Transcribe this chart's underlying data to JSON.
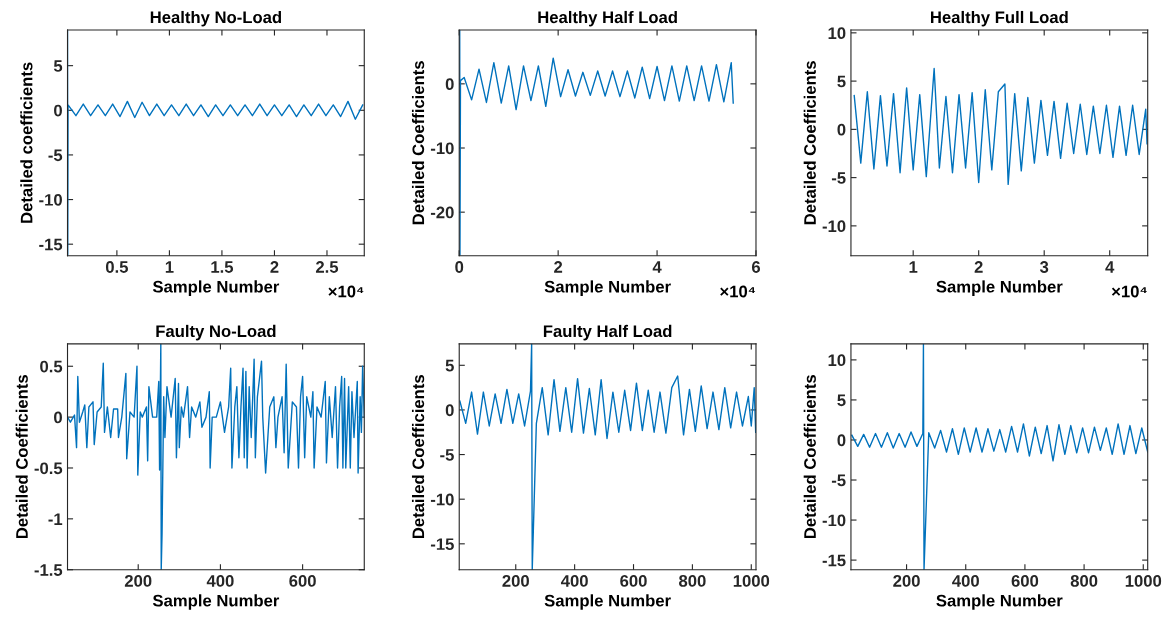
{
  "chart_data": [
    {
      "type": "line",
      "title": "Healthy No-Load",
      "xlabel": "Sample Number",
      "ylabel": "Detailed coefficients",
      "annotations": [
        "×10⁴"
      ],
      "xlim": [
        0.03,
        2.855
      ],
      "ylim": [
        -16.3,
        9
      ],
      "xticks": [
        0.5,
        1,
        1.5,
        2,
        2.5
      ],
      "yticks": [
        -15,
        -10,
        -5,
        0,
        5
      ],
      "series": [
        {
          "color": "#0072bd",
          "x": [
            0.03,
            0.032,
            0.035,
            0.11,
            0.18,
            0.25,
            0.32,
            0.39,
            0.46,
            0.53,
            0.6,
            0.67,
            0.74,
            0.81,
            0.88,
            0.95,
            1.02,
            1.09,
            1.16,
            1.23,
            1.3,
            1.37,
            1.44,
            1.51,
            1.58,
            1.65,
            1.72,
            1.79,
            1.86,
            1.93,
            2.0,
            2.07,
            2.14,
            2.21,
            2.28,
            2.35,
            2.42,
            2.49,
            2.56,
            2.63,
            2.7,
            2.77,
            2.84
          ],
          "values": [
            8.9,
            -16.2,
            0.6,
            -0.6,
            0.7,
            -0.6,
            0.6,
            -0.6,
            0.7,
            -0.7,
            1.0,
            -0.8,
            0.9,
            -0.6,
            0.7,
            -0.6,
            0.6,
            -0.6,
            0.7,
            -0.6,
            0.6,
            -0.7,
            0.6,
            -0.6,
            0.6,
            -0.6,
            0.6,
            -0.6,
            0.7,
            -0.6,
            0.6,
            -0.6,
            0.6,
            -0.7,
            0.6,
            -0.6,
            0.7,
            -0.6,
            0.6,
            -0.7,
            1.0,
            -1.0,
            0.6
          ]
        }
      ]
    },
    {
      "type": "line",
      "title": "Healthy Half Load",
      "xlabel": "Sample Number",
      "ylabel": "Detailed Coefficients",
      "annotations": [
        "×10⁴"
      ],
      "xlim": [
        0,
        6
      ],
      "ylim": [
        -26.8,
        8.4
      ],
      "xticks": [
        0,
        2,
        4,
        6
      ],
      "yticks": [
        -20,
        -10,
        0
      ],
      "series": [
        {
          "color": "#0072bd",
          "x": [
            0.01,
            0.015,
            0.025,
            0.1,
            0.25,
            0.4,
            0.55,
            0.7,
            0.85,
            1.0,
            1.15,
            1.3,
            1.45,
            1.6,
            1.75,
            1.9,
            2.05,
            2.2,
            2.35,
            2.5,
            2.65,
            2.8,
            2.95,
            3.1,
            3.25,
            3.4,
            3.55,
            3.7,
            3.85,
            4.0,
            4.15,
            4.3,
            4.45,
            4.6,
            4.75,
            4.9,
            5.05,
            5.2,
            5.35,
            5.5,
            5.54
          ],
          "values": [
            8.3,
            -26.7,
            0.5,
            1.0,
            -2.5,
            2.3,
            -2.9,
            3.3,
            -3.0,
            2.8,
            -4.0,
            2.8,
            -2.6,
            2.8,
            -3.5,
            4.0,
            -2.0,
            2.2,
            -1.9,
            1.8,
            -1.8,
            2.0,
            -1.9,
            2.0,
            -2.0,
            2.0,
            -2.2,
            2.6,
            -2.3,
            2.7,
            -2.6,
            2.8,
            -2.7,
            2.8,
            -2.6,
            2.8,
            -2.7,
            3.0,
            -2.8,
            3.3,
            -3.0
          ]
        }
      ]
    },
    {
      "type": "line",
      "title": "Healthy Full Load",
      "xlabel": "Sample Number",
      "ylabel": "Detailed Coefficients",
      "annotations": [
        "×10⁴"
      ],
      "xlim": [
        0.05,
        4.58
      ],
      "ylim": [
        -13.1,
        10.3
      ],
      "xticks": [
        1,
        2,
        3,
        4
      ],
      "yticks": [
        -10,
        -5,
        0,
        5,
        10
      ],
      "series": [
        {
          "color": "#0072bd",
          "x": [
            0.1,
            0.2,
            0.3,
            0.4,
            0.5,
            0.6,
            0.7,
            0.8,
            0.9,
            1.0,
            1.1,
            1.2,
            1.32,
            1.4,
            1.5,
            1.6,
            1.7,
            1.8,
            1.9,
            2.0,
            2.1,
            2.2,
            2.3,
            2.4,
            2.45,
            2.55,
            2.65,
            2.75,
            2.85,
            2.95,
            3.05,
            3.15,
            3.25,
            3.35,
            3.45,
            3.55,
            3.65,
            3.75,
            3.85,
            3.95,
            4.05,
            4.15,
            4.25,
            4.35,
            4.45,
            4.55,
            4.57
          ],
          "values": [
            3.5,
            -3.5,
            3.9,
            -4.1,
            3.5,
            -3.8,
            3.7,
            -4.5,
            4.3,
            -4.2,
            3.6,
            -4.9,
            6.3,
            -4.0,
            3.4,
            -4.5,
            3.6,
            -4.0,
            3.8,
            -5.5,
            4.1,
            -4.2,
            3.9,
            4.7,
            -5.7,
            3.7,
            -4.3,
            3.3,
            -3.5,
            3.0,
            -2.7,
            2.9,
            -3.0,
            2.7,
            -2.5,
            2.6,
            -2.6,
            2.4,
            -2.5,
            2.5,
            -2.9,
            2.4,
            -2.7,
            2.5,
            -2.6,
            2.1,
            -1.5
          ]
        }
      ]
    },
    {
      "type": "line",
      "title": "Faulty No-Load",
      "xlabel": "Sample Number",
      "ylabel": "Detailed Coefficients",
      "xlim": [
        28,
        750
      ],
      "ylim": [
        -1.5,
        0.72
      ],
      "xticks": [
        200,
        400,
        600
      ],
      "yticks": [
        -1.5,
        -1,
        -0.5,
        0,
        0.5
      ],
      "series": [
        {
          "color": "#0072bd",
          "x": [
            28,
            35,
            45,
            50,
            53,
            57,
            65,
            70,
            75,
            80,
            90,
            93,
            100,
            110,
            115,
            118,
            125,
            133,
            140,
            150,
            152,
            160,
            170,
            172,
            180,
            190,
            197,
            199,
            205,
            210,
            220,
            223,
            226,
            235,
            245,
            250,
            252,
            255,
            256,
            258,
            262,
            265,
            270,
            280,
            290,
            293,
            298,
            300,
            305,
            310,
            320,
            325,
            330,
            340,
            350,
            355,
            365,
            373,
            375,
            380,
            390,
            400,
            410,
            420,
            425,
            428,
            435,
            440,
            445,
            450,
            455,
            458,
            462,
            465,
            470,
            475,
            482,
            485,
            490,
            500,
            503,
            510,
            520,
            530,
            535,
            540,
            550,
            555,
            560,
            565,
            575,
            585,
            590,
            595,
            600,
            605,
            610,
            620,
            625,
            628,
            635,
            645,
            655,
            658,
            665,
            672,
            680,
            685,
            690,
            695,
            698,
            702,
            705,
            712,
            716,
            720,
            725,
            733,
            735,
            740,
            743,
            746,
            750
          ],
          "values": [
            0.0,
            -0.05,
            0.02,
            -0.3,
            0.4,
            -0.05,
            0.05,
            0.12,
            -0.3,
            0.1,
            0.15,
            -0.27,
            0.05,
            0.1,
            0.53,
            -0.15,
            0.1,
            -0.2,
            0.08,
            0.08,
            -0.2,
            0.0,
            0.43,
            -0.41,
            0.05,
            0.0,
            0.5,
            -0.57,
            0.05,
            0.0,
            0.1,
            -0.43,
            0.3,
            0.0,
            0.0,
            0.35,
            -0.52,
            0.72,
            -1.5,
            -1.15,
            0.2,
            -0.2,
            0.3,
            0.0,
            0.38,
            -0.4,
            0.33,
            -0.3,
            0.1,
            0.0,
            0.3,
            -0.2,
            0.1,
            0.0,
            0.15,
            -0.1,
            0.0,
            0.25,
            -0.5,
            0.0,
            0.0,
            0.15,
            -0.15,
            0.1,
            0.48,
            -0.5,
            0.1,
            0.3,
            -0.4,
            0.1,
            0.48,
            -0.4,
            0.45,
            -0.5,
            0.3,
            -0.2,
            0.57,
            -0.4,
            0.2,
            0.55,
            0.0,
            -0.55,
            0.1,
            0.2,
            -0.3,
            0.0,
            0.2,
            -0.35,
            0.52,
            -0.5,
            0.15,
            0.1,
            -0.5,
            0.2,
            0.4,
            -0.4,
            0.2,
            0.0,
            0.25,
            -0.5,
            0.1,
            0.0,
            0.35,
            -0.45,
            0.2,
            -0.2,
            0.3,
            -0.5,
            0.1,
            0.4,
            -0.5,
            0.38,
            -0.5,
            0.3,
            -0.5,
            0.25,
            -0.2,
            0.35,
            -0.55,
            0.2,
            -0.15,
            0.5,
            0.0
          ]
        }
      ]
    },
    {
      "type": "line",
      "title": "Faulty Half Load",
      "xlabel": "Sample Number",
      "ylabel": "Detailed Coefficients",
      "xlim": [
        8,
        1016
      ],
      "ylim": [
        -17.9,
        7.4
      ],
      "xticks": [
        200,
        400,
        600,
        800,
        1000
      ],
      "yticks": [
        -15,
        -10,
        -5,
        0,
        5
      ],
      "series": [
        {
          "color": "#0072bd",
          "x": [
            10,
            30,
            50,
            70,
            90,
            110,
            130,
            150,
            170,
            190,
            210,
            230,
            250,
            254,
            256,
            270,
            290,
            310,
            330,
            350,
            370,
            390,
            410,
            430,
            450,
            470,
            490,
            510,
            530,
            550,
            570,
            590,
            610,
            630,
            650,
            670,
            690,
            710,
            730,
            750,
            770,
            790,
            810,
            830,
            850,
            870,
            890,
            910,
            930,
            950,
            970,
            990,
            1000,
            1010,
            1015
          ],
          "values": [
            1.0,
            -1.5,
            2.0,
            -2.7,
            2.0,
            -1.8,
            1.8,
            -1.5,
            2.3,
            -1.5,
            1.8,
            -1.8,
            2.1,
            7.4,
            -17.9,
            -1.5,
            2.5,
            -2.8,
            3.4,
            -2.4,
            2.5,
            -2.5,
            3.5,
            -2.6,
            2.4,
            -2.8,
            3.4,
            -3.2,
            2.0,
            -2.5,
            2.2,
            -2.3,
            3.0,
            -2.3,
            2.2,
            -2.5,
            2.0,
            -2.6,
            2.5,
            3.8,
            -2.8,
            2.3,
            -2.4,
            2.7,
            -2.1,
            2.0,
            -2.2,
            2.5,
            -2.0,
            2.0,
            -1.8,
            1.5,
            -1.8,
            2.5,
            -2.5
          ]
        }
      ]
    },
    {
      "type": "line",
      "xlabel": "Sample Number",
      "ylabel": "Detailed Coefficients",
      "xlim": [
        12,
        1015
      ],
      "ylim": [
        -16.2,
        12
      ],
      "xticks": [
        200,
        400,
        600,
        800,
        1000
      ],
      "yticks": [
        -15,
        -10,
        -5,
        0,
        5,
        10
      ],
      "series": [
        {
          "color": "#0072bd",
          "x": [
            15,
            35,
            55,
            75,
            95,
            115,
            135,
            155,
            175,
            195,
            215,
            235,
            255,
            257,
            259,
            275,
            295,
            315,
            335,
            355,
            375,
            395,
            415,
            435,
            455,
            475,
            495,
            515,
            535,
            555,
            575,
            595,
            615,
            635,
            655,
            675,
            695,
            715,
            735,
            755,
            775,
            795,
            815,
            835,
            855,
            875,
            895,
            915,
            935,
            955,
            975,
            995,
            1015
          ],
          "values": [
            0.6,
            -0.8,
            0.7,
            -0.9,
            0.8,
            -0.9,
            0.9,
            -1.0,
            0.8,
            -0.9,
            1.0,
            -0.8,
            0.8,
            12.0,
            -16.2,
            0.9,
            -1.0,
            1.2,
            -1.5,
            1.4,
            -1.8,
            1.5,
            -1.5,
            1.5,
            -1.5,
            1.4,
            -1.4,
            1.3,
            -1.5,
            1.7,
            -1.5,
            2.0,
            -2.0,
            1.6,
            -1.7,
            1.8,
            -2.6,
            1.9,
            -1.8,
            1.8,
            -1.6,
            1.5,
            -1.6,
            1.6,
            -1.3,
            1.5,
            -1.8,
            2.0,
            -1.8,
            1.8,
            -1.7,
            1.5,
            -1.5
          ]
        }
      ]
    }
  ]
}
